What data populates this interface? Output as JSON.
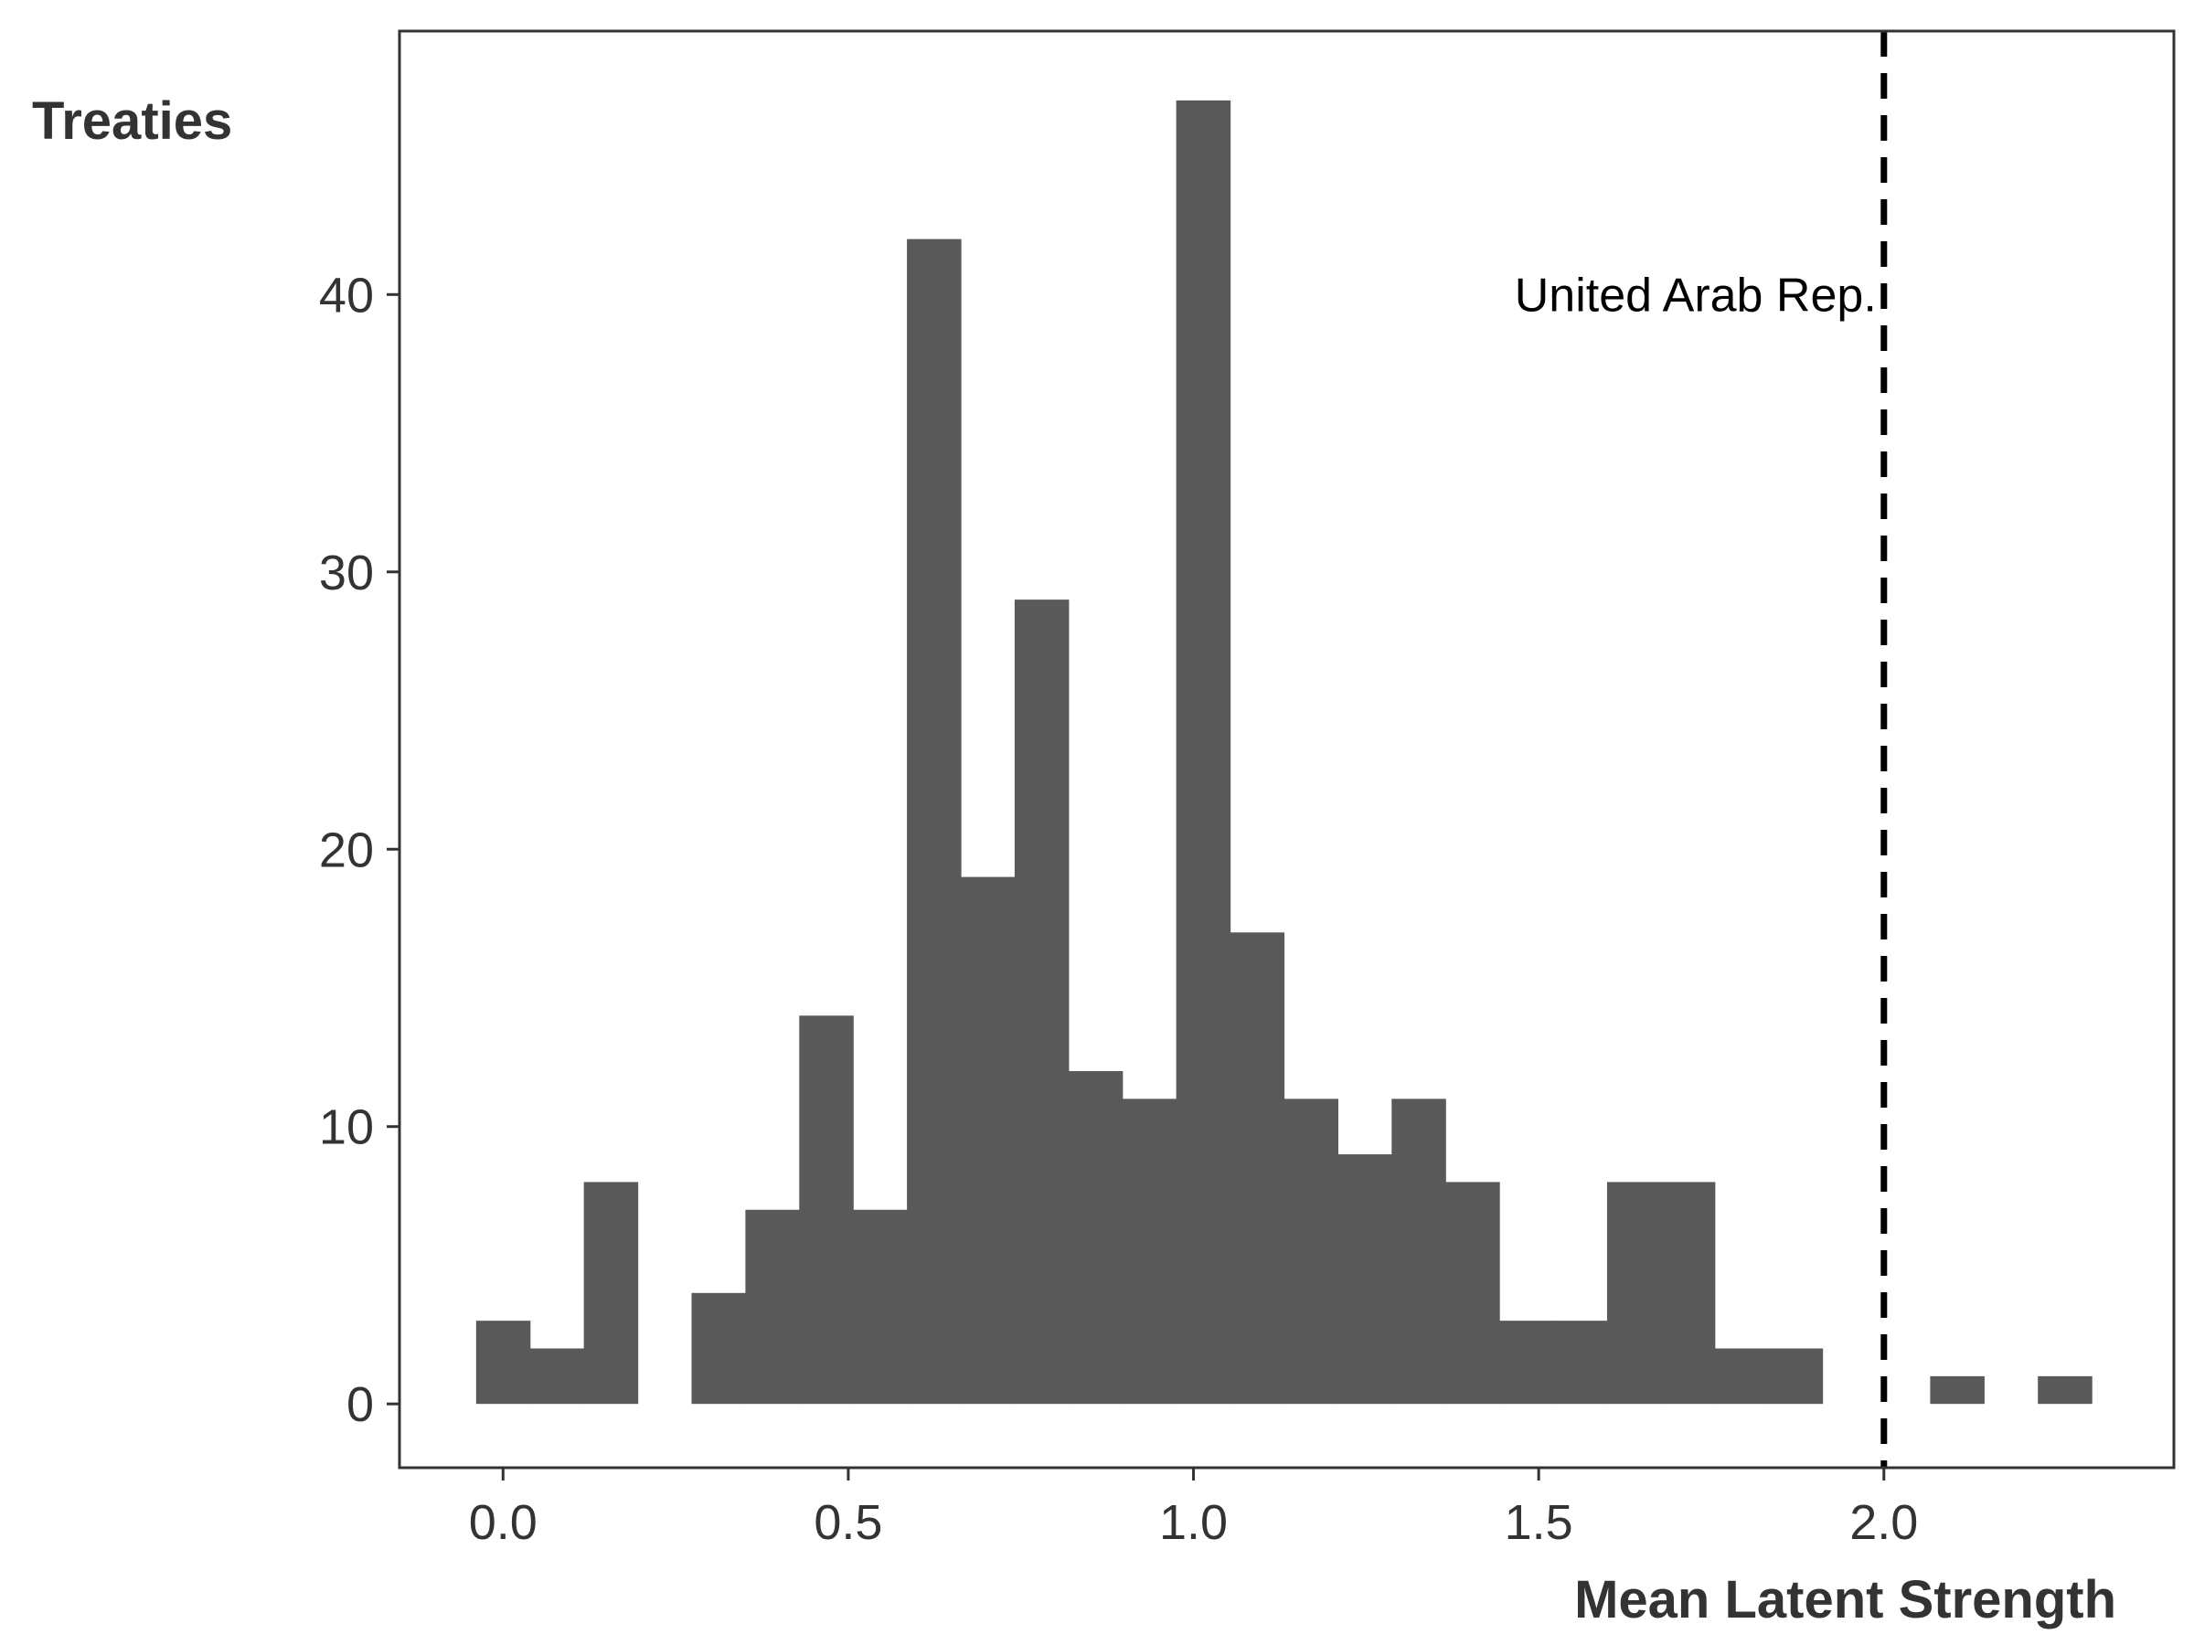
{
  "chart_data": {
    "type": "bar",
    "subtype": "histogram",
    "ylabel": "Treaties",
    "xlabel": "Mean Latent Strength",
    "xlim": [
      -0.15,
      2.42
    ],
    "ylim": [
      -2.3,
      49.5
    ],
    "bin_width": 0.078,
    "bin_centers": [
      0.0,
      0.078,
      0.156,
      0.234,
      0.312,
      0.39,
      0.468,
      0.546,
      0.624,
      0.702,
      0.78,
      0.858,
      0.936,
      1.014,
      1.092,
      1.17,
      1.248,
      1.326,
      1.404,
      1.482,
      1.56,
      1.638,
      1.716,
      1.794,
      1.872,
      1.95,
      2.028,
      2.106,
      2.184,
      2.262
    ],
    "counts": [
      3,
      2,
      8,
      0,
      4,
      7,
      14,
      7,
      42,
      19,
      29,
      12,
      11,
      47,
      17,
      11,
      9,
      11,
      8,
      3,
      3,
      8,
      8,
      2,
      2,
      0,
      0,
      1,
      0,
      1
    ],
    "x_ticks": [
      0.0,
      0.5,
      1.0,
      1.5,
      2.0
    ],
    "x_tick_labels": [
      "0.0",
      "0.5",
      "1.0",
      "1.5",
      "2.0"
    ],
    "y_ticks": [
      0,
      10,
      20,
      30,
      40
    ],
    "y_tick_labels": [
      "0",
      "10",
      "20",
      "30",
      "40"
    ],
    "bar_color": "#595959",
    "reference_line": {
      "x": 2.0,
      "style": "dashed",
      "color": "#000000",
      "label": "United Arab Rep."
    },
    "grid": false,
    "legend": "none"
  }
}
